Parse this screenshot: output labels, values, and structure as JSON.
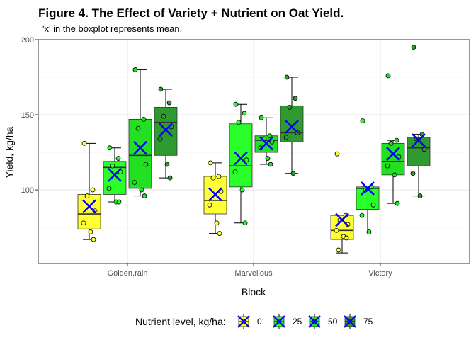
{
  "chart_data": {
    "type": "boxplot",
    "title": "Figure 4. The Effect of Variety + Nutrient on Oat Yield.",
    "subtitle": "'x' in the boxplot represents mean.",
    "xlabel": "Block",
    "ylabel": "Yield, kg/ha",
    "ylim": [
      51,
      200
    ],
    "yticks": [
      100,
      150,
      200
    ],
    "grid": true,
    "legend_position": "bottom",
    "legend_title": "Nutrient level, kg/ha:",
    "categories": [
      "Golden.rain",
      "Marvellous",
      "Victory"
    ],
    "series": [
      {
        "name": "0",
        "color": "#ffff33",
        "boxes": [
          {
            "min": 67,
            "q1": 74,
            "median": 84,
            "q3": 97,
            "max": 131,
            "mean": 89,
            "points": [
              131,
              100,
              96,
              86,
              78,
              72,
              67
            ]
          },
          {
            "min": 71,
            "q1": 84,
            "median": 93,
            "q3": 109,
            "max": 118,
            "mean": 97,
            "points": [
              118,
              109,
              108,
              99,
              90,
              78,
              71
            ]
          },
          {
            "min": 58,
            "q1": 67,
            "median": 73,
            "q3": 83,
            "max": 83,
            "mean": 80,
            "points": [
              124,
              83,
              80,
              77,
              73,
              69,
              68,
              60
            ]
          }
        ]
      },
      {
        "name": "25",
        "color": "#2aff2a",
        "boxes": [
          {
            "min": 92,
            "q1": 97,
            "median": 115,
            "q3": 119,
            "max": 128,
            "mean": 110,
            "points": [
              128,
              121,
              116,
              112,
              101,
              92,
              92
            ]
          },
          {
            "min": 78,
            "q1": 102,
            "median": 116,
            "q3": 144,
            "max": 157,
            "mean": 121,
            "points": [
              157,
              151,
              145,
              120,
              112,
              100,
              78
            ]
          },
          {
            "min": 72,
            "q1": 87,
            "median": 101,
            "q3": 102,
            "max": 102,
            "mean": 101,
            "points": [
              146,
              102,
              100,
              90,
              83,
              72
            ]
          }
        ]
      },
      {
        "name": "50",
        "color": "#22e022",
        "boxes": [
          {
            "min": 96,
            "q1": 101,
            "median": 123,
            "q3": 147,
            "max": 180,
            "mean": 128,
            "points": [
              180,
              147,
              141,
              117,
              105,
              100,
              96
            ]
          },
          {
            "min": 117,
            "q1": 125,
            "median": 133,
            "q3": 136,
            "max": 148,
            "mean": 131,
            "points": [
              148,
              136,
              134,
              132,
              128,
              121,
              117
            ]
          },
          {
            "min": 91,
            "q1": 110,
            "median": 119,
            "q3": 131,
            "max": 133,
            "mean": 124,
            "points": [
              176,
              133,
              131,
              122,
              116,
              110,
              91
            ]
          }
        ]
      },
      {
        "name": "75",
        "color": "#2f9a2f",
        "boxes": [
          {
            "min": 108,
            "q1": 123,
            "median": 145,
            "q3": 155,
            "max": 167,
            "mean": 140,
            "points": [
              167,
              158,
              149,
              142,
              134,
              117,
              108
            ]
          },
          {
            "min": 111,
            "q1": 132,
            "median": 138,
            "q3": 156,
            "max": 175,
            "mean": 142,
            "points": [
              175,
              161,
              155,
              138,
              135,
              111
            ]
          },
          {
            "min": 96,
            "q1": 116,
            "median": 128,
            "q3": 135,
            "max": 137,
            "mean": 133,
            "points": [
              195,
              137,
              134,
              127,
              111,
              96
            ]
          }
        ]
      }
    ]
  }
}
